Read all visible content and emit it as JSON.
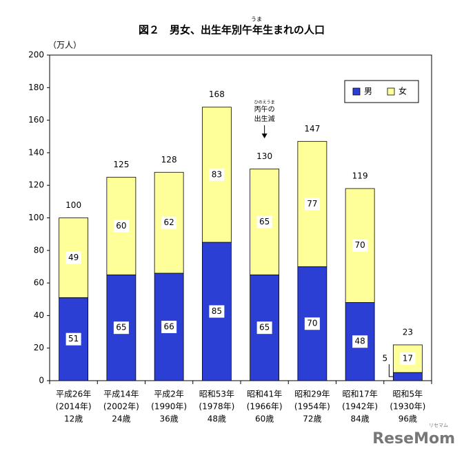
{
  "chart_data": {
    "type": "stacked-bar",
    "title": "図２　男女、出生年別午年生まれの人口",
    "title_ruby": "うま",
    "y_unit_label": "（万人）",
    "categories": [
      [
        "平成26年",
        "(2014年)",
        "12歳"
      ],
      [
        "平成14年",
        "(2002年)",
        "24歳"
      ],
      [
        "平成2年",
        "(1990年)",
        "36歳"
      ],
      [
        "昭和53年",
        "(1978年)",
        "48歳"
      ],
      [
        "昭和41年",
        "(1966年)",
        "60歳"
      ],
      [
        "昭和29年",
        "(1954年)",
        "72歳"
      ],
      [
        "昭和17年",
        "(1942年)",
        "84歳"
      ],
      [
        "昭和5年",
        "(1930年)",
        "96歳"
      ]
    ],
    "series": [
      {
        "name": "男",
        "color": "#2b3fd4",
        "values": [
          51,
          65,
          66,
          85,
          65,
          70,
          48,
          5
        ]
      },
      {
        "name": "女",
        "color": "#ffff99",
        "values": [
          49,
          60,
          62,
          83,
          65,
          77,
          70,
          17
        ]
      }
    ],
    "totals": [
      100,
      125,
      128,
      168,
      130,
      147,
      119,
      23
    ],
    "annotation": {
      "category_index": 4,
      "ruby": "ひのえうま",
      "lines": [
        "丙午の",
        "出生減"
      ]
    },
    "ylim": [
      0,
      200
    ],
    "yticks": [
      0,
      20,
      40,
      60,
      80,
      100,
      120,
      140,
      160,
      180,
      200
    ],
    "legend": "top-right",
    "watermark": "ReseMom",
    "watermark_sub": "リセマム"
  }
}
